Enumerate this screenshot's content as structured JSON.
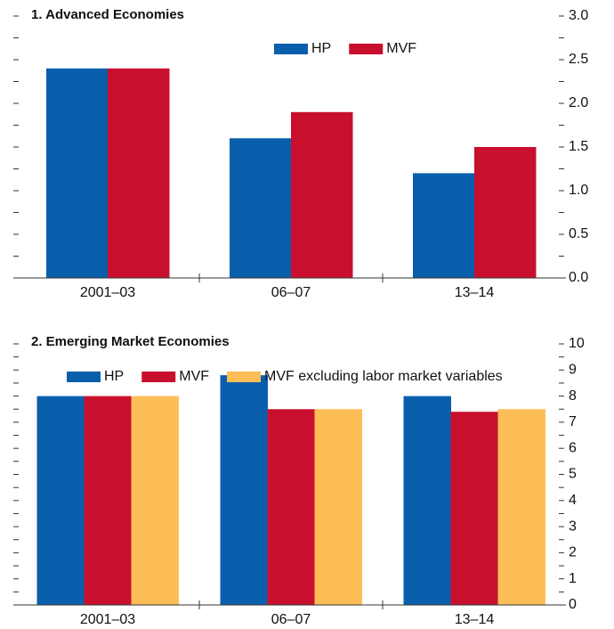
{
  "chart_data": [
    {
      "type": "bar",
      "title": "1. Advanced Economies",
      "categories": [
        "2001–03",
        "06–07",
        "13–14"
      ],
      "series": [
        {
          "name": "HP",
          "color": "#0a5fad",
          "values": [
            2.4,
            1.6,
            1.2
          ]
        },
        {
          "name": "MVF",
          "color": "#c8102e",
          "values": [
            2.4,
            1.9,
            1.5
          ]
        }
      ],
      "ylim": [
        0,
        3
      ],
      "yticks": [
        {
          "value": 0,
          "label": "0.0"
        },
        {
          "value": 0.5,
          "label": "0.5"
        },
        {
          "value": 1,
          "label": "1.0"
        },
        {
          "value": 1.5,
          "label": "1.5"
        },
        {
          "value": 2,
          "label": "2.0"
        },
        {
          "value": 2.5,
          "label": "2.5"
        },
        {
          "value": 3,
          "label": "3.0"
        }
      ],
      "yticks_minor": [
        0.25,
        0.75,
        1.25,
        1.75,
        2.25,
        2.75
      ]
    },
    {
      "type": "bar",
      "title": "2. Emerging Market Economies",
      "categories": [
        "2001–03",
        "06–07",
        "13–14"
      ],
      "series": [
        {
          "name": "HP",
          "color": "#0a5fad",
          "values": [
            8.0,
            8.8,
            8.0
          ]
        },
        {
          "name": "MVF",
          "color": "#c8102e",
          "values": [
            8.0,
            7.5,
            7.4
          ]
        },
        {
          "name": "MVF excluding labor market variables",
          "color": "#fdbe57",
          "values": [
            8.0,
            7.5,
            7.5
          ]
        }
      ],
      "ylim": [
        0,
        10
      ],
      "yticks": [
        0,
        1,
        2,
        3,
        4,
        5,
        6,
        7,
        8,
        9,
        10
      ],
      "yticks_minor": [
        0.5,
        1.5,
        2.5,
        3.5,
        4.5,
        5.5,
        6.5,
        7.5,
        8.5,
        9.5
      ]
    }
  ]
}
